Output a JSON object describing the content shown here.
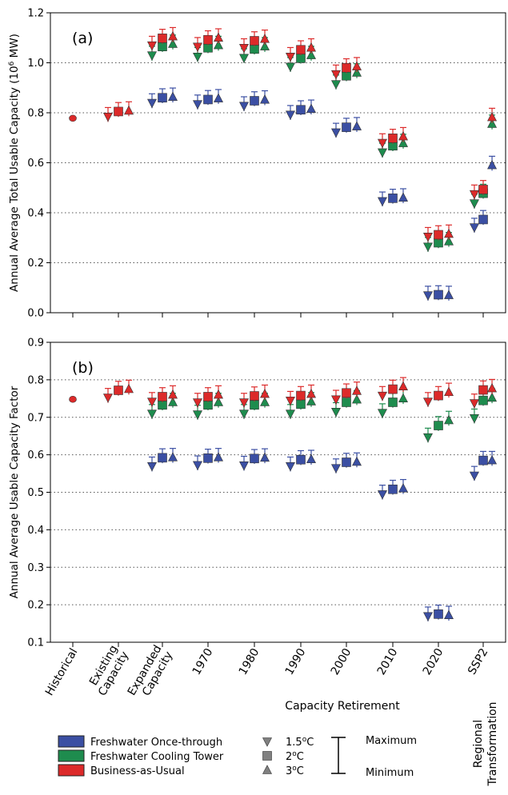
{
  "chart_data": [
    {
      "panel_label": "(a)",
      "type": "scatter",
      "ylabel_main": "Annual Average Total Usable Capacity (10",
      "ylabel_sup": "6",
      "ylabel_tail": " MW)",
      "ylim": [
        0.0,
        1.2
      ],
      "yticks": [
        "0.0",
        "0.2",
        "0.4",
        "0.6",
        "0.8",
        "1.0",
        "1.2"
      ],
      "grid": "horizontal dotted",
      "historical": 0.778,
      "categories": [
        "Historical",
        "Existing Capacity",
        "Expanded Capacity",
        "1970",
        "1980",
        "1990",
        "2000",
        "2010",
        "2020",
        "SSP2"
      ],
      "series": [
        {
          "name": "Freshwater Once-through",
          "color": "#3b4fa3",
          "values": [
            null,
            null,
            [
              0.84,
              0.86,
              0.863
            ],
            [
              0.835,
              0.853,
              0.857
            ],
            [
              0.828,
              0.848,
              0.852
            ],
            [
              0.793,
              0.812,
              0.815
            ],
            [
              0.722,
              0.742,
              0.745
            ],
            [
              0.447,
              0.458,
              0.46
            ],
            [
              0.07,
              0.072,
              0.07
            ],
            [
              0.342,
              0.373,
              0.59
            ]
          ]
        },
        {
          "name": "Freshwater Cooling Tower",
          "color": "#1e8c4e",
          "values": [
            null,
            null,
            [
              1.03,
              1.065,
              1.075
            ],
            [
              1.025,
              1.06,
              1.07
            ],
            [
              1.02,
              1.055,
              1.065
            ],
            [
              0.985,
              1.018,
              1.03
            ],
            [
              0.915,
              0.948,
              0.96
            ],
            [
              0.642,
              0.668,
              0.678
            ],
            [
              0.265,
              0.28,
              0.285
            ],
            [
              0.438,
              0.478,
              0.755
            ]
          ]
        },
        {
          "name": "Business-as-Usual",
          "color": "#dc2a2a",
          "values": [
            null,
            [
              0.785,
              0.805,
              0.808
            ],
            [
              1.07,
              1.098,
              1.105
            ],
            [
              1.065,
              1.092,
              1.1
            ],
            [
              1.06,
              1.088,
              1.095
            ],
            [
              1.025,
              1.052,
              1.06
            ],
            [
              0.955,
              0.98,
              0.985
            ],
            [
              0.68,
              0.698,
              0.705
            ],
            [
              0.305,
              0.312,
              0.315
            ],
            [
              0.475,
              0.493,
              0.782
            ]
          ]
        }
      ]
    },
    {
      "panel_label": "(b)",
      "type": "scatter",
      "ylabel_main": "Annual Average Usable Capacity Factor",
      "ylabel_sup": "",
      "ylabel_tail": "",
      "ylim": [
        0.1,
        0.9
      ],
      "yticks": [
        "0.1",
        "0.2",
        "0.3",
        "0.4",
        "0.5",
        "0.6",
        "0.7",
        "0.8",
        "0.9"
      ],
      "grid": "horizontal dotted",
      "historical": 0.748,
      "categories": [
        "Historical",
        "Existing Capacity",
        "Expanded Capacity",
        "1970",
        "1980",
        "1990",
        "2000",
        "2010",
        "2020",
        "SSP2"
      ],
      "series": [
        {
          "name": "Freshwater Once-through",
          "color": "#3b4fa3",
          "values": [
            null,
            null,
            [
              0.57,
              0.592,
              0.593
            ],
            [
              0.573,
              0.591,
              0.593
            ],
            [
              0.572,
              0.59,
              0.592
            ],
            [
              0.57,
              0.587,
              0.588
            ],
            [
              0.565,
              0.58,
              0.581
            ],
            [
              0.495,
              0.508,
              0.51
            ],
            [
              0.17,
              0.175,
              0.172
            ],
            [
              0.545,
              0.585,
              0.585
            ]
          ]
        },
        {
          "name": "Freshwater Cooling Tower",
          "color": "#1e8c4e",
          "values": [
            null,
            null,
            [
              0.71,
              0.733,
              0.74
            ],
            [
              0.708,
              0.733,
              0.74
            ],
            [
              0.71,
              0.733,
              0.74
            ],
            [
              0.71,
              0.735,
              0.742
            ],
            [
              0.715,
              0.74,
              0.747
            ],
            [
              0.712,
              0.74,
              0.75
            ],
            [
              0.647,
              0.678,
              0.692
            ],
            [
              0.698,
              0.745,
              0.752
            ]
          ]
        },
        {
          "name": "Business-as-Usual",
          "color": "#dc2a2a",
          "values": [
            null,
            [
              0.753,
              0.772,
              0.775
            ],
            [
              0.742,
              0.755,
              0.76
            ],
            [
              0.74,
              0.755,
              0.76
            ],
            [
              0.74,
              0.757,
              0.762
            ],
            [
              0.745,
              0.758,
              0.762
            ],
            [
              0.748,
              0.765,
              0.77
            ],
            [
              0.758,
              0.775,
              0.782
            ],
            [
              0.742,
              0.758,
              0.767
            ],
            [
              0.738,
              0.773,
              0.777
            ]
          ]
        }
      ]
    }
  ],
  "x_tick_labels": [
    "Historical",
    "Existing\nCapacity",
    "Expanded\nCapacity",
    "1970",
    "1980",
    "1990",
    "2000",
    "2010",
    "2020",
    "SSP2"
  ],
  "xlabel_retirement": "Capacity Retirement",
  "xlabel_regional_1": "Regional",
  "xlabel_regional_2": "Transformation",
  "legend": {
    "series": [
      {
        "label": "Freshwater Once-through",
        "color": "#3b4fa3"
      },
      {
        "label": "Freshwater Cooling Tower",
        "color": "#1e8c4e"
      },
      {
        "label": "Business-as-Usual",
        "color": "#dc2a2a"
      }
    ],
    "warming": [
      {
        "label": "1.5",
        "unit": "C",
        "marker": "triangle-down"
      },
      {
        "label": "2",
        "unit": "C",
        "marker": "square"
      },
      {
        "label": "3",
        "unit": "C",
        "marker": "triangle-up"
      }
    ],
    "deg": "o",
    "max_label": "Maximum",
    "min_label": "Minimum"
  }
}
